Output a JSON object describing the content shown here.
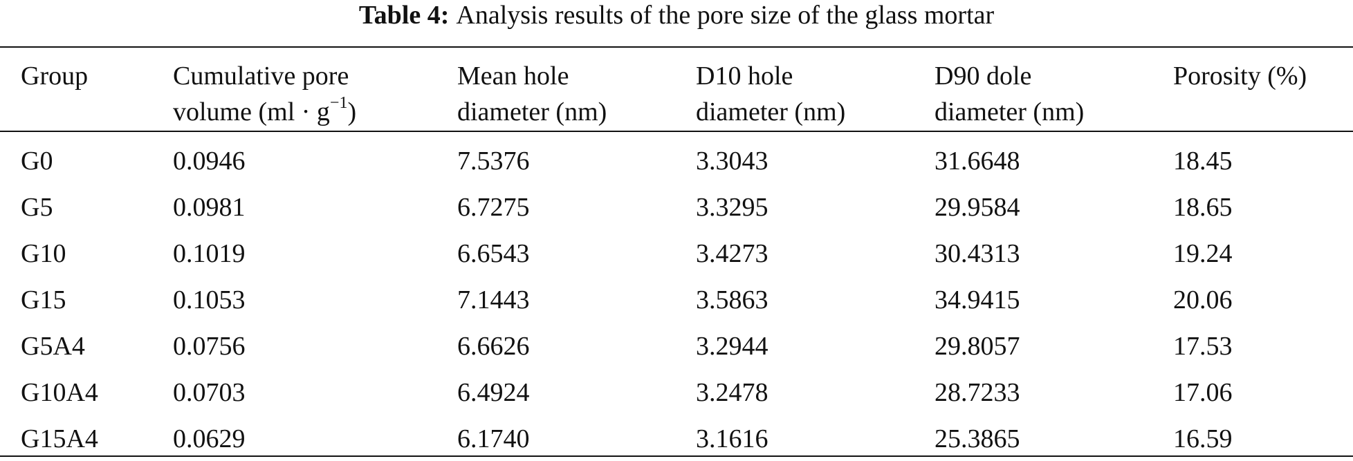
{
  "caption": {
    "label": "Table 4:",
    "text": "Analysis results of the pore size of the glass mortar"
  },
  "headers": [
    {
      "line1": "Group",
      "line2": ""
    },
    {
      "line1": "Cumulative pore",
      "line2": "volume (ml · g",
      "sup": "−1",
      "line2_end": ")"
    },
    {
      "line1": "Mean hole",
      "line2": "diameter (nm)"
    },
    {
      "line1": "D10 hole",
      "line2": "diameter (nm)"
    },
    {
      "line1": "D90 dole",
      "line2": "diameter (nm)"
    },
    {
      "line1": "Porosity (%)",
      "line2": ""
    }
  ],
  "rows": [
    [
      "G0",
      "0.0946",
      "7.5376",
      "3.3043",
      "31.6648",
      "18.45"
    ],
    [
      "G5",
      "0.0981",
      "6.7275",
      "3.3295",
      "29.9584",
      "18.65"
    ],
    [
      "G10",
      "0.1019",
      "6.6543",
      "3.4273",
      "30.4313",
      "19.24"
    ],
    [
      "G15",
      "0.1053",
      "7.1443",
      "3.5863",
      "34.9415",
      "20.06"
    ],
    [
      "G5A4",
      "0.0756",
      "6.6626",
      "3.2944",
      "29.8057",
      "17.53"
    ],
    [
      "G10A4",
      "0.0703",
      "6.4924",
      "3.2478",
      "28.7233",
      "17.06"
    ],
    [
      "G15A4",
      "0.0629",
      "6.1740",
      "3.1616",
      "25.3865",
      "16.59"
    ]
  ]
}
